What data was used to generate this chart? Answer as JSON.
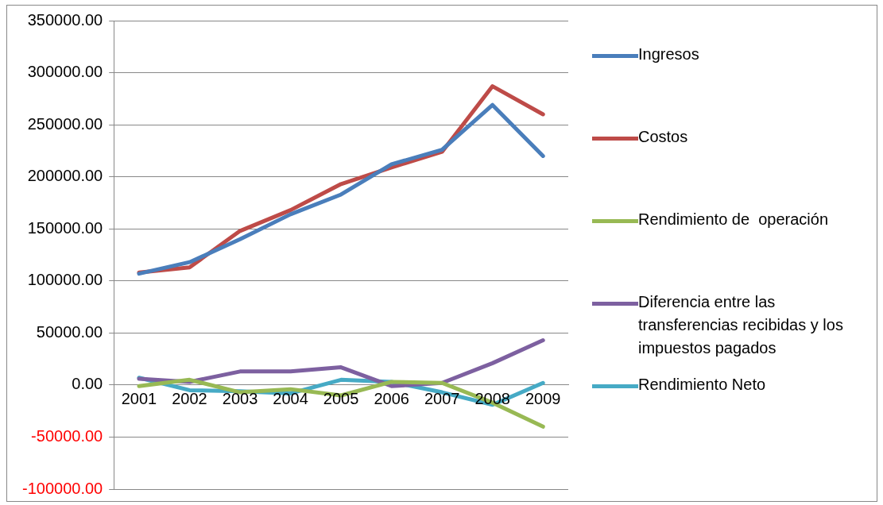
{
  "chart_data": {
    "type": "line",
    "categories": [
      "2001",
      "2002",
      "2003",
      "2004",
      "2005",
      "2006",
      "2007",
      "2008",
      "2009"
    ],
    "series": [
      {
        "name": "Ingresos",
        "color": "#4a7ebb",
        "values": [
          107000,
          118000,
          140000,
          164000,
          183000,
          212000,
          226000,
          269000,
          220000
        ]
      },
      {
        "name": "Costos",
        "color": "#be4b48",
        "values": [
          108000,
          113000,
          148000,
          168000,
          193000,
          209000,
          224000,
          287000,
          260000
        ]
      },
      {
        "name": "Rendimiento de  operación",
        "color": "#98b954",
        "values": [
          -1000,
          5000,
          -7000,
          -4000,
          -10000,
          3000,
          2000,
          -17000,
          -40000
        ]
      },
      {
        "name": "Diferencia entre las transferencias recibidas y los impuestos pagados",
        "color": "#7d60a0",
        "values": [
          6000,
          3000,
          13000,
          13000,
          17000,
          -1000,
          2000,
          21000,
          43000
        ]
      },
      {
        "name": "Rendimiento Neto",
        "color": "#46aac5",
        "values": [
          7000,
          -5000,
          -6000,
          -8000,
          5000,
          3000,
          -7000,
          -19000,
          2000
        ]
      }
    ],
    "ylim": [
      -100000,
      350000
    ],
    "yticks": [
      {
        "value": -100000,
        "label": "-100000.00"
      },
      {
        "value": -50000,
        "label": "-50000.00"
      },
      {
        "value": 0,
        "label": "0.00"
      },
      {
        "value": 50000,
        "label": "50000.00"
      },
      {
        "value": 100000,
        "label": "100000.00"
      },
      {
        "value": 150000,
        "label": "150000.00"
      },
      {
        "value": 200000,
        "label": "200000.00"
      },
      {
        "value": 250000,
        "label": "250000.00"
      },
      {
        "value": 300000,
        "label": "300000.00"
      },
      {
        "value": 350000,
        "label": "350000.00"
      }
    ],
    "grid": "y",
    "legend": "right",
    "marker": "none",
    "line_style": "solid"
  }
}
